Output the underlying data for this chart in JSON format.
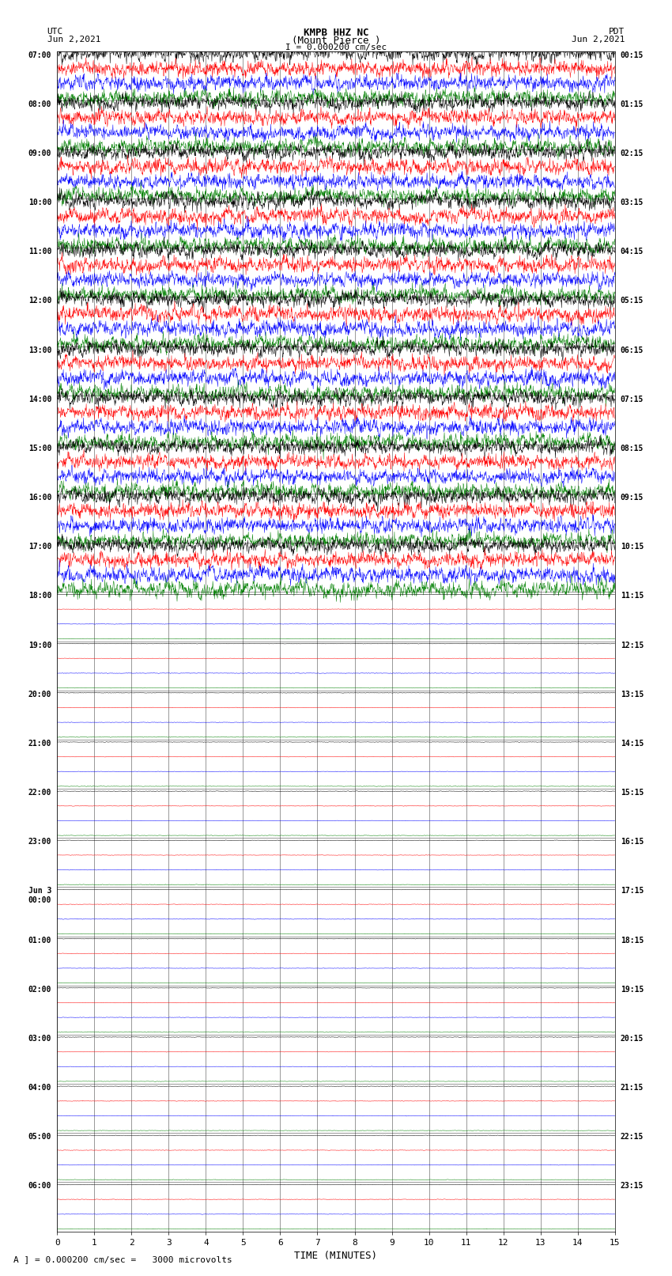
{
  "title_line1": "KMPB HHZ NC",
  "title_line2": "(Mount Pierce )",
  "title_line3": "I = 0.000200 cm/sec",
  "left_header_line1": "UTC",
  "left_header_line2": "Jun 2,2021",
  "right_header_line1": "PDT",
  "right_header_line2": "Jun 2,2021",
  "xlabel": "TIME (MINUTES)",
  "footer": "A ] = 0.000200 cm/sec =   3000 microvolts",
  "utc_labels": [
    "07:00",
    "08:00",
    "09:00",
    "10:00",
    "11:00",
    "12:00",
    "13:00",
    "14:00",
    "15:00",
    "16:00",
    "17:00",
    "18:00",
    "19:00",
    "20:00",
    "21:00",
    "22:00",
    "23:00",
    "Jun 3\n00:00",
    "01:00",
    "02:00",
    "03:00",
    "04:00",
    "05:00",
    "06:00"
  ],
  "pdt_labels": [
    "00:15",
    "01:15",
    "02:15",
    "03:15",
    "04:15",
    "05:15",
    "06:15",
    "07:15",
    "08:15",
    "09:15",
    "10:15",
    "11:15",
    "12:15",
    "13:15",
    "14:15",
    "15:15",
    "16:15",
    "17:15",
    "18:15",
    "19:15",
    "20:15",
    "21:15",
    "22:15",
    "23:15"
  ],
  "n_rows": 24,
  "active_rows": 11,
  "n_traces_per_row": 4,
  "colors": [
    "black",
    "red",
    "blue",
    "green"
  ],
  "x_ticks": [
    0,
    1,
    2,
    3,
    4,
    5,
    6,
    7,
    8,
    9,
    10,
    11,
    12,
    13,
    14,
    15
  ],
  "bg_color": "white",
  "line_width": 0.35,
  "amplitude_active": 0.18,
  "amplitude_quiet": 0.008,
  "seed": 42
}
